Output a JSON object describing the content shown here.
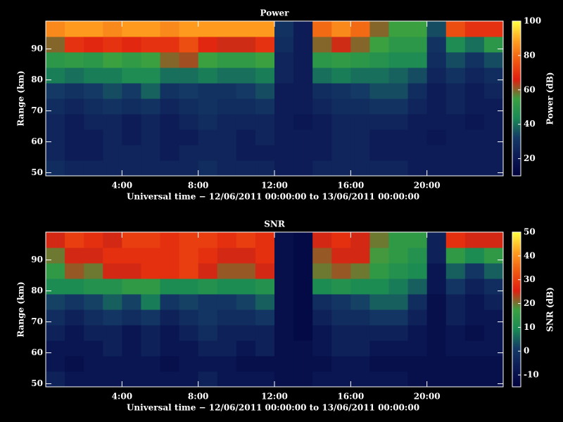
{
  "chart_data": [
    {
      "type": "heatmap",
      "title": "Power",
      "x_label": "Universal time − 12/06/2011 00:00:00 to 13/06/2011 00:00:00",
      "y_label": "Range (km)",
      "colorbar_label": "Power (dB)",
      "xlim": [
        0,
        24
      ],
      "xticks": [
        {
          "value": 4,
          "label": "4:00"
        },
        {
          "value": 8,
          "label": "8:00"
        },
        {
          "value": 12,
          "label": "12:00"
        },
        {
          "value": 16,
          "label": "16:00"
        },
        {
          "value": 20,
          "label": "20:00"
        }
      ],
      "ylim": [
        49,
        99
      ],
      "yticks": [
        50,
        60,
        70,
        80,
        90
      ],
      "clim": [
        10,
        100
      ],
      "cticks": [
        20,
        40,
        60,
        80,
        100
      ],
      "colormap": [
        "#00003c",
        "#0c1a55",
        "#143a66",
        "#1a8a55",
        "#3aa040",
        "#e01e10",
        "#f05a10",
        "#ffa020",
        "#ffff40"
      ],
      "x": [
        0.5,
        1.5,
        2.5,
        3.5,
        4.5,
        5.5,
        6.5,
        7.5,
        8.5,
        9.5,
        10.5,
        11.5,
        12.5,
        13.5,
        14.5,
        15.5,
        16.5,
        17.5,
        18.5,
        19.5,
        20.5,
        21.5,
        22.5,
        23.5
      ],
      "y": [
        51.5,
        56.5,
        61.5,
        66.5,
        71.5,
        76.5,
        81.5,
        86.5,
        91.5,
        96.5
      ],
      "z": [
        [
          28,
          25,
          25,
          25,
          25,
          25,
          25,
          25,
          28,
          25,
          25,
          25,
          22,
          22,
          25,
          25,
          25,
          25,
          25,
          22,
          22,
          22,
          22,
          22
        ],
        [
          25,
          22,
          22,
          25,
          25,
          25,
          22,
          25,
          25,
          25,
          22,
          22,
          22,
          22,
          22,
          25,
          25,
          22,
          22,
          22,
          22,
          22,
          22,
          22
        ],
        [
          25,
          22,
          22,
          25,
          22,
          25,
          22,
          22,
          25,
          25,
          22,
          25,
          22,
          22,
          22,
          25,
          25,
          22,
          22,
          22,
          20,
          22,
          22,
          22
        ],
        [
          25,
          22,
          25,
          25,
          22,
          25,
          22,
          25,
          28,
          25,
          25,
          25,
          22,
          20,
          22,
          25,
          25,
          25,
          25,
          22,
          22,
          22,
          20,
          22
        ],
        [
          28,
          25,
          28,
          30,
          28,
          30,
          25,
          28,
          30,
          28,
          28,
          30,
          22,
          22,
          25,
          28,
          28,
          30,
          30,
          25,
          22,
          25,
          22,
          22
        ],
        [
          32,
          30,
          32,
          35,
          32,
          38,
          30,
          32,
          30,
          30,
          32,
          35,
          22,
          22,
          28,
          30,
          32,
          35,
          35,
          28,
          22,
          25,
          22,
          25
        ],
        [
          42,
          40,
          42,
          42,
          45,
          45,
          40,
          40,
          42,
          40,
          40,
          42,
          25,
          22,
          40,
          42,
          40,
          40,
          38,
          35,
          25,
          30,
          25,
          28
        ],
        [
          50,
          52,
          50,
          55,
          52,
          55,
          60,
          62,
          55,
          52,
          52,
          55,
          25,
          22,
          50,
          52,
          50,
          48,
          45,
          45,
          28,
          35,
          30,
          35
        ],
        [
          60,
          70,
          68,
          70,
          68,
          70,
          70,
          75,
          68,
          65,
          65,
          70,
          28,
          22,
          60,
          65,
          60,
          55,
          50,
          50,
          30,
          45,
          40,
          50
        ],
        [
          85,
          88,
          88,
          85,
          88,
          88,
          85,
          88,
          88,
          88,
          88,
          88,
          30,
          22,
          80,
          85,
          80,
          60,
          55,
          55,
          35,
          75,
          70,
          70
        ]
      ]
    },
    {
      "type": "heatmap",
      "title": "SNR",
      "x_label": "Universal time − 12/06/2011 00:00:00 to 13/06/2011 00:00:00",
      "y_label": "Range (km)",
      "colorbar_label": "SNR (dB)",
      "xlim": [
        0,
        24
      ],
      "xticks": [
        {
          "value": 4,
          "label": "4:00"
        },
        {
          "value": 8,
          "label": "8:00"
        },
        {
          "value": 12,
          "label": "12:00"
        },
        {
          "value": 16,
          "label": "16:00"
        },
        {
          "value": 20,
          "label": "20:00"
        }
      ],
      "ylim": [
        49,
        99
      ],
      "yticks": [
        50,
        60,
        70,
        80,
        90
      ],
      "clim": [
        -15,
        50
      ],
      "cticks": [
        -10,
        0,
        10,
        20,
        30,
        40,
        50
      ],
      "colormap": [
        "#00003c",
        "#0c1a55",
        "#143a66",
        "#1a8a55",
        "#3aa040",
        "#e01e10",
        "#f05a10",
        "#ffa020",
        "#ffff40"
      ],
      "x": [
        0.5,
        1.5,
        2.5,
        3.5,
        4.5,
        5.5,
        6.5,
        7.5,
        8.5,
        9.5,
        10.5,
        11.5,
        12.5,
        13.5,
        14.5,
        15.5,
        16.5,
        17.5,
        18.5,
        19.5,
        20.5,
        21.5,
        22.5,
        23.5
      ],
      "y": [
        51.5,
        56.5,
        61.5,
        66.5,
        71.5,
        76.5,
        81.5,
        86.5,
        91.5,
        96.5
      ],
      "z": [
        [
          -5,
          -8,
          -8,
          -8,
          -8,
          -8,
          -8,
          -8,
          -5,
          -8,
          -8,
          -8,
          -10,
          -10,
          -8,
          -8,
          -8,
          -8,
          -8,
          -10,
          -10,
          -10,
          -10,
          -10
        ],
        [
          -8,
          -10,
          -8,
          -8,
          -8,
          -8,
          -10,
          -8,
          -8,
          -8,
          -10,
          -10,
          -10,
          -10,
          -10,
          -8,
          -8,
          -10,
          -10,
          -10,
          -10,
          -10,
          -10,
          -10
        ],
        [
          -8,
          -8,
          -8,
          -5,
          -8,
          -5,
          -8,
          -8,
          -5,
          -5,
          -8,
          -5,
          -10,
          -10,
          -8,
          -5,
          -5,
          -8,
          -8,
          -8,
          -10,
          -8,
          -8,
          -8
        ],
        [
          -5,
          -8,
          -5,
          -5,
          -8,
          -5,
          -8,
          -5,
          -2,
          -5,
          -5,
          -5,
          -10,
          -12,
          -8,
          -5,
          -5,
          -5,
          -5,
          -8,
          -10,
          -8,
          -10,
          -8
        ],
        [
          -2,
          -5,
          -2,
          0,
          -2,
          0,
          -5,
          -2,
          0,
          -2,
          -2,
          0,
          -10,
          -12,
          -5,
          -2,
          -2,
          0,
          0,
          -5,
          -10,
          -5,
          -8,
          -8
        ],
        [
          2,
          0,
          2,
          5,
          2,
          8,
          0,
          2,
          0,
          0,
          2,
          5,
          -10,
          -12,
          -2,
          0,
          2,
          5,
          5,
          -2,
          -10,
          -5,
          -8,
          -5
        ],
        [
          10,
          10,
          12,
          12,
          15,
          15,
          10,
          10,
          12,
          10,
          10,
          12,
          -10,
          -12,
          10,
          12,
          10,
          10,
          8,
          5,
          -8,
          0,
          -5,
          -2
        ],
        [
          15,
          22,
          20,
          25,
          25,
          28,
          28,
          30,
          25,
          22,
          22,
          25,
          -10,
          -12,
          20,
          22,
          20,
          15,
          12,
          10,
          -8,
          5,
          0,
          5
        ],
        [
          20,
          25,
          25,
          28,
          28,
          28,
          28,
          30,
          28,
          25,
          25,
          28,
          -10,
          -12,
          22,
          25,
          25,
          18,
          15,
          12,
          -5,
          15,
          10,
          15
        ],
        [
          25,
          30,
          28,
          25,
          30,
          30,
          28,
          30,
          30,
          28,
          30,
          28,
          -10,
          -12,
          25,
          28,
          25,
          20,
          15,
          15,
          -5,
          28,
          25,
          25
        ]
      ]
    }
  ]
}
